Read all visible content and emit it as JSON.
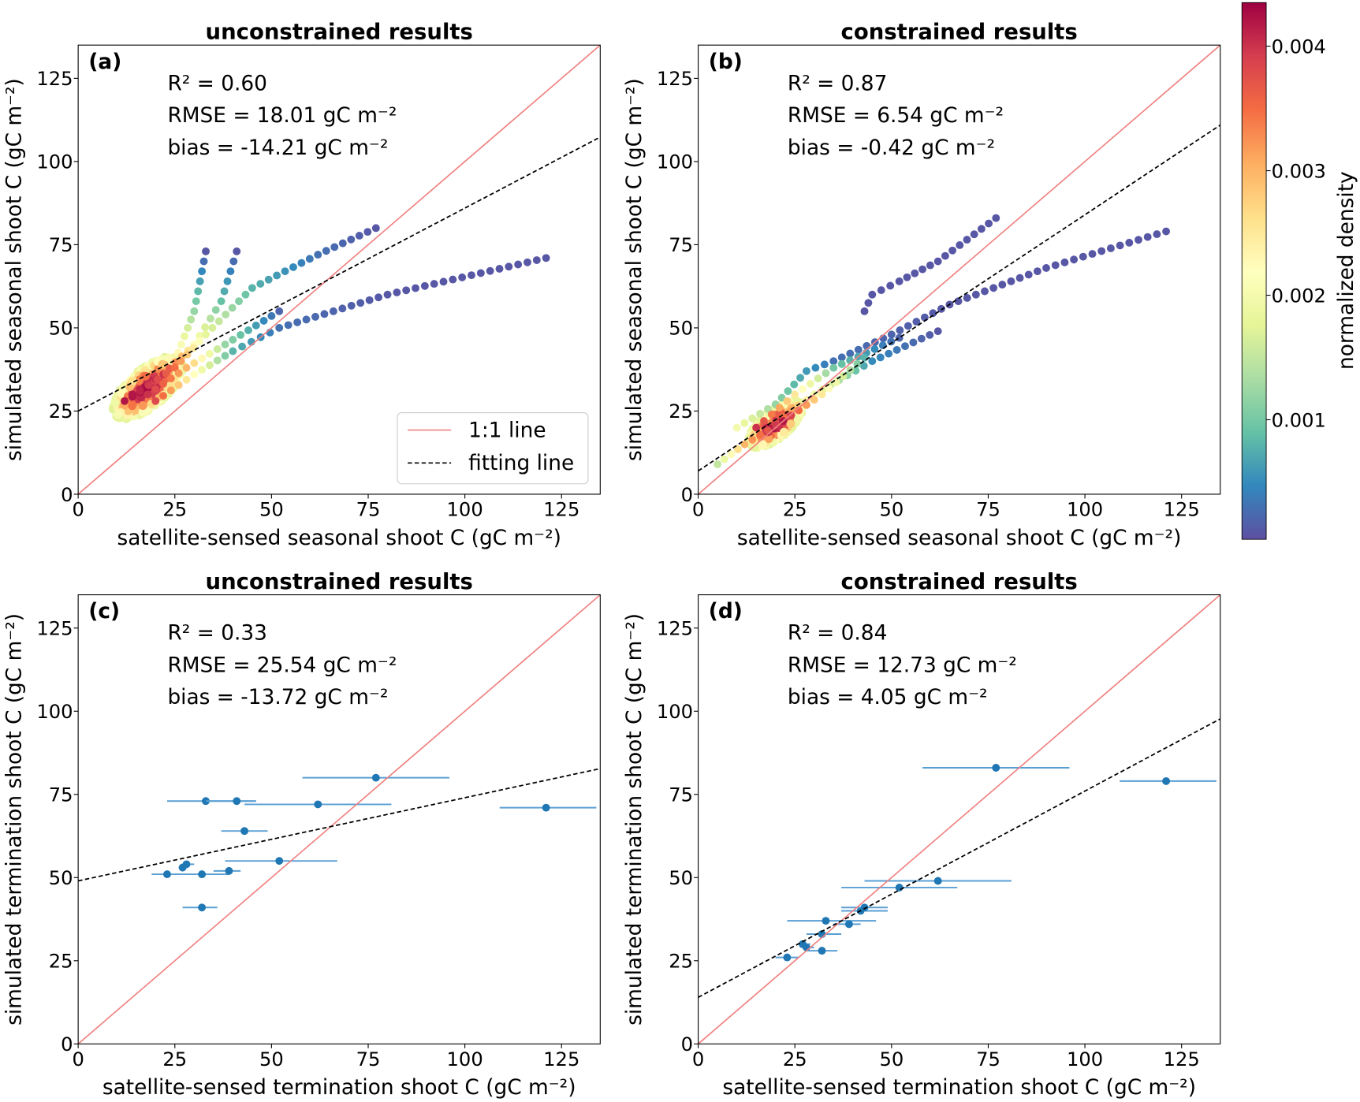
{
  "colorbar": {
    "label": "normalized density",
    "ticks": [
      0.001,
      0.002,
      0.003,
      0.004
    ],
    "tick_labels": [
      "0.001",
      "0.002",
      "0.003",
      "0.004"
    ],
    "range": [
      4e-05,
      0.00435
    ],
    "colormap": "Spectral_r"
  },
  "legend": {
    "one_to_one": "1:1 line",
    "fitting": "fitting line",
    "one_to_one_color": "#f08080",
    "fitting_color": "#000000",
    "point_color": "#1f77b4",
    "errorbar_color": "#5a9fd4"
  },
  "chart_data": [
    {
      "panel": "(a)",
      "type": "scatter",
      "title": "unconstrained results",
      "xlabel": "satellite-sensed seasonal shoot C (gC m⁻²)",
      "ylabel": "simulated seasonal shoot C (gC m⁻²)",
      "xlim": [
        0,
        135
      ],
      "ylim": [
        0,
        135
      ],
      "xticks": [
        0,
        25,
        50,
        75,
        100,
        125
      ],
      "yticks": [
        0,
        25,
        50,
        75,
        100,
        125
      ],
      "stats": [
        "R² = 0.60",
        "RMSE = 18.01 gC m⁻²",
        "bias = -14.21 gC m⁻²"
      ],
      "fit": {
        "intercept": 25,
        "slope": 0.61
      },
      "show_legend": true,
      "curves": [
        {
          "points": [
            [
              12,
              28
            ],
            [
              18,
              32
            ],
            [
              25,
              40
            ],
            [
              30,
              55
            ],
            [
              33,
              73
            ]
          ],
          "density": [
            0.0042,
            0.0043,
            0.0025,
            0.0012,
            0.0001
          ]
        },
        {
          "points": [
            [
              14,
              30
            ],
            [
              22,
              36
            ],
            [
              30,
              45
            ],
            [
              37,
              58
            ],
            [
              41,
              73
            ]
          ],
          "density": [
            0.0042,
            0.004,
            0.0022,
            0.0009,
            0.0001
          ]
        },
        {
          "points": [
            [
              16,
              31
            ],
            [
              25,
              38
            ],
            [
              33,
              48
            ],
            [
              45,
              62
            ],
            [
              62,
              72
            ],
            [
              77,
              80
            ]
          ],
          "density": [
            0.0041,
            0.0035,
            0.0018,
            0.0008,
            0.0003,
            0.0001
          ]
        },
        {
          "points": [
            [
              18,
              30
            ],
            [
              28,
              38
            ],
            [
              38,
              45
            ],
            [
              52,
              55
            ]
          ],
          "density": [
            0.004,
            0.003,
            0.0012,
            0.0002
          ]
        },
        {
          "points": [
            [
              20,
              28
            ],
            [
              30,
              36
            ],
            [
              40,
              43
            ],
            [
              52,
              50
            ],
            [
              80,
              60
            ],
            [
              121,
              71
            ]
          ],
          "density": [
            0.0038,
            0.0022,
            0.0008,
            0.0003,
            0.0001,
            0.0001
          ]
        }
      ],
      "cluster": {
        "center": [
          18,
          32
        ],
        "spread": [
          9,
          7
        ],
        "peak_density": 0.0043
      }
    },
    {
      "panel": "(b)",
      "type": "scatter",
      "title": "constrained results",
      "xlabel": "satellite-sensed seasonal shoot C (gC m⁻²)",
      "ylabel": "simulated seasonal shoot C (gC m⁻²)",
      "xlim": [
        0,
        135
      ],
      "ylim": [
        0,
        135
      ],
      "xticks": [
        0,
        25,
        50,
        75,
        100,
        125
      ],
      "yticks": [
        0,
        25,
        50,
        75,
        100,
        125
      ],
      "stats": [
        "R² = 0.87",
        "RMSE = 6.54 gC m⁻²",
        "bias = -0.42 gC m⁻²"
      ],
      "fit": {
        "intercept": 7,
        "slope": 0.77
      },
      "show_legend": false,
      "curves": [
        {
          "points": [
            [
              43,
              55
            ],
            [
              45,
              60
            ],
            [
              52,
              64
            ],
            [
              62,
              70
            ],
            [
              77,
              83
            ]
          ],
          "density": [
            0.0001,
            0.0001,
            0.0001,
            0.0001,
            0.0001
          ]
        },
        {
          "points": [
            [
              10,
              20
            ],
            [
              20,
              27
            ],
            [
              28,
              37
            ],
            [
              35,
              40
            ],
            [
              50,
              48
            ],
            [
              65,
              57
            ],
            [
              90,
              68
            ],
            [
              121,
              79
            ]
          ],
          "density": [
            0.002,
            0.0012,
            0.0006,
            0.0003,
            0.0002,
            0.0001,
            0.0001,
            0.0001
          ]
        },
        {
          "points": [
            [
              15,
              20
            ],
            [
              25,
              30
            ],
            [
              35,
              38
            ],
            [
              52,
              47
            ]
          ],
          "density": [
            0.004,
            0.0025,
            0.001,
            0.0002
          ]
        },
        {
          "points": [
            [
              18,
              20
            ],
            [
              30,
              30
            ],
            [
              45,
              40
            ],
            [
              62,
              49
            ]
          ],
          "density": [
            0.0042,
            0.002,
            0.0005,
            0.0001
          ]
        },
        {
          "points": [
            [
              5,
              9
            ],
            [
              12,
              15
            ],
            [
              22,
              22
            ],
            [
              32,
              30
            ],
            [
              43,
              41
            ]
          ],
          "density": [
            0.0015,
            0.003,
            0.0042,
            0.0025,
            0.0008
          ]
        }
      ],
      "cluster": {
        "center": [
          20,
          21
        ],
        "spread": [
          7,
          5
        ],
        "peak_density": 0.0043
      }
    },
    {
      "panel": "(c)",
      "type": "scatter",
      "title": "unconstrained results",
      "xlabel": "satellite-sensed termination shoot C (gC m⁻²)",
      "ylabel": "simulated termination shoot C (gC m⁻²)",
      "xlim": [
        0,
        135
      ],
      "ylim": [
        0,
        135
      ],
      "xticks": [
        0,
        25,
        50,
        75,
        100,
        125
      ],
      "yticks": [
        0,
        25,
        50,
        75,
        100,
        125
      ],
      "stats": [
        "R² = 0.33",
        "RMSE = 25.54 gC m⁻²",
        "bias = -13.72 gC m⁻²"
      ],
      "fit": {
        "intercept": 49,
        "slope": 0.25
      },
      "show_legend": false,
      "points": [
        {
          "x": 77,
          "y": 80,
          "xerr": [
            58,
            96
          ]
        },
        {
          "x": 33,
          "y": 73,
          "xerr": [
            23,
            46
          ]
        },
        {
          "x": 41,
          "y": 73,
          "xerr": [
            33,
            46
          ]
        },
        {
          "x": 62,
          "y": 72,
          "xerr": [
            43,
            81
          ]
        },
        {
          "x": 121,
          "y": 71,
          "xerr": [
            109,
            134
          ]
        },
        {
          "x": 43,
          "y": 64,
          "xerr": [
            37,
            49
          ]
        },
        {
          "x": 52,
          "y": 55,
          "xerr": [
            38,
            67
          ]
        },
        {
          "x": 28,
          "y": 54,
          "xerr": [
            27,
            30
          ]
        },
        {
          "x": 27,
          "y": 53,
          "xerr": [
            26,
            28
          ]
        },
        {
          "x": 23,
          "y": 51,
          "xerr": [
            19,
            26
          ]
        },
        {
          "x": 32,
          "y": 51,
          "xerr": [
            25,
            39
          ]
        },
        {
          "x": 39,
          "y": 52,
          "xerr": [
            35,
            42
          ]
        },
        {
          "x": 32,
          "y": 41,
          "xerr": [
            27,
            36
          ]
        }
      ]
    },
    {
      "panel": "(d)",
      "type": "scatter",
      "title": "constrained results",
      "xlabel": "satellite-sensed termination shoot C (gC m⁻²)",
      "ylabel": "simulated termination shoot C (gC m⁻²)",
      "xlim": [
        0,
        135
      ],
      "ylim": [
        0,
        135
      ],
      "xticks": [
        0,
        25,
        50,
        75,
        100,
        125
      ],
      "yticks": [
        0,
        25,
        50,
        75,
        100,
        125
      ],
      "stats": [
        "R² = 0.84",
        "RMSE = 12.73 gC m⁻²",
        "bias = 4.05 gC m⁻²"
      ],
      "fit": {
        "intercept": 14,
        "slope": 0.62
      },
      "show_legend": false,
      "points": [
        {
          "x": 77,
          "y": 83,
          "xerr": [
            58,
            96
          ]
        },
        {
          "x": 121,
          "y": 79,
          "xerr": [
            109,
            134
          ]
        },
        {
          "x": 62,
          "y": 49,
          "xerr": [
            43,
            81
          ]
        },
        {
          "x": 52,
          "y": 47,
          "xerr": [
            37,
            67
          ]
        },
        {
          "x": 42,
          "y": 40,
          "xerr": [
            37,
            49
          ]
        },
        {
          "x": 43,
          "y": 41,
          "xerr": [
            37,
            49
          ]
        },
        {
          "x": 33,
          "y": 37,
          "xerr": [
            23,
            46
          ]
        },
        {
          "x": 39,
          "y": 36,
          "xerr": [
            35,
            42
          ]
        },
        {
          "x": 32,
          "y": 33,
          "xerr": [
            28,
            37
          ]
        },
        {
          "x": 27,
          "y": 30,
          "xerr": [
            26,
            29
          ]
        },
        {
          "x": 28,
          "y": 29,
          "xerr": [
            27,
            30
          ]
        },
        {
          "x": 32,
          "y": 28,
          "xerr": [
            28,
            36
          ]
        },
        {
          "x": 23,
          "y": 26,
          "xerr": [
            20,
            26
          ]
        }
      ]
    }
  ]
}
